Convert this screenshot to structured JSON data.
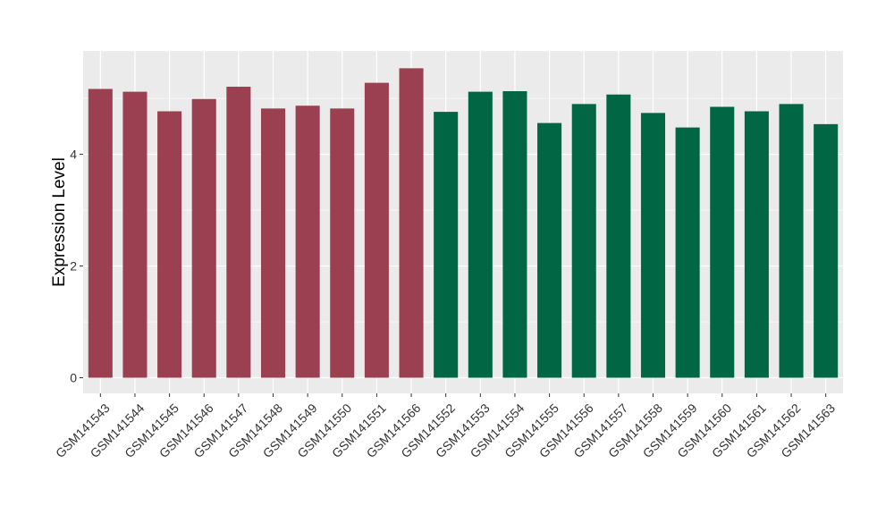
{
  "chart_data": {
    "type": "bar",
    "title": "",
    "xlabel": "",
    "ylabel": "Expression Level",
    "ylim": [
      -0.28,
      5.85
    ],
    "yticks": [
      0,
      2,
      4
    ],
    "grid": true,
    "legend": "none",
    "colors": {
      "group1": "#9b4050",
      "group2": "#006644",
      "panel": "#ebebeb",
      "grid": "#ffffff"
    },
    "categories": [
      "GSM141543",
      "GSM141544",
      "GSM141545",
      "GSM141546",
      "GSM141547",
      "GSM141548",
      "GSM141549",
      "GSM141550",
      "GSM141551",
      "GSM141566",
      "GSM141552",
      "GSM141553",
      "GSM141554",
      "GSM141555",
      "GSM141556",
      "GSM141557",
      "GSM141558",
      "GSM141559",
      "GSM141560",
      "GSM141561",
      "GSM141562",
      "GSM141563"
    ],
    "values": [
      5.17,
      5.12,
      4.77,
      4.99,
      5.21,
      4.82,
      4.87,
      4.82,
      5.28,
      5.54,
      4.76,
      5.12,
      5.13,
      4.56,
      4.9,
      5.07,
      4.74,
      4.48,
      4.85,
      4.77,
      4.9,
      4.54
    ],
    "groups": [
      1,
      1,
      1,
      1,
      1,
      1,
      1,
      1,
      1,
      1,
      2,
      2,
      2,
      2,
      2,
      2,
      2,
      2,
      2,
      2,
      2,
      2
    ]
  }
}
